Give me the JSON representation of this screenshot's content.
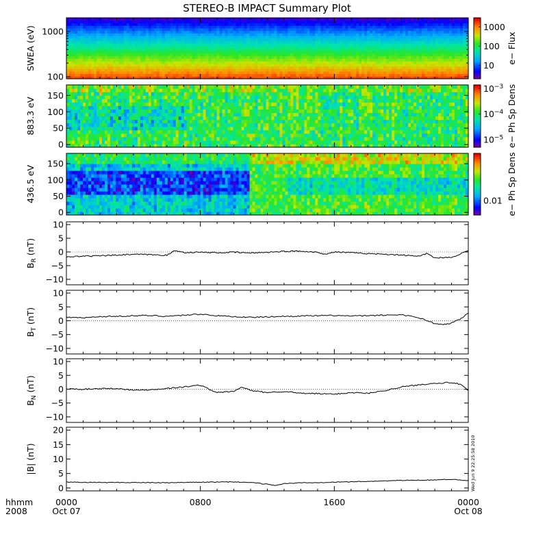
{
  "title": "STEREO-B IMPACT Summary Plot",
  "timestamp": "Wed Jun  9 22:25:58 2010",
  "chart_data": [
    {
      "id": "swea",
      "type": "heatmap",
      "ylabel": "SWEA (eV)",
      "yscale": "log",
      "ylim": [
        90,
        2000
      ],
      "yticks": [
        {
          "v": 100,
          "label": "100"
        },
        {
          "v": 1000,
          "label": "1000"
        }
      ],
      "colorbar": {
        "label": "e− Flux",
        "scale": "log",
        "range": [
          2,
          3000
        ],
        "ticks": [
          {
            "v": 10,
            "label": "10"
          },
          {
            "v": 100,
            "label": "100"
          },
          {
            "v": 1000,
            "label": "1000"
          }
        ]
      }
    },
    {
      "id": "pad_883",
      "type": "heatmap",
      "ylabel": "883.3 eV",
      "ylim": [
        -8,
        182
      ],
      "yticks": [
        {
          "v": 0,
          "label": "0"
        },
        {
          "v": 50,
          "label": "50"
        },
        {
          "v": 100,
          "label": "100"
        },
        {
          "v": 150,
          "label": "150"
        }
      ],
      "colorbar": {
        "label": "e− Ph Sp Dens",
        "scale": "log",
        "range": [
          5e-06,
          0.0014
        ],
        "ticks": [
          {
            "v": 1e-05,
            "base": "10",
            "exp": "−5"
          },
          {
            "v": 0.0001,
            "base": "10",
            "exp": "−4"
          },
          {
            "v": 0.001,
            "base": "10",
            "exp": "−3"
          }
        ]
      }
    },
    {
      "id": "pad_436",
      "type": "heatmap",
      "ylabel": "436.5 eV",
      "ylim": [
        -8,
        182
      ],
      "yticks": [
        {
          "v": 0,
          "label": "0"
        },
        {
          "v": 50,
          "label": "50"
        },
        {
          "v": 100,
          "label": "100"
        },
        {
          "v": 150,
          "label": "150"
        }
      ],
      "colorbar": {
        "label": "e− Ph Sp Dens",
        "scale": "log",
        "range": [
          0.005,
          0.1
        ],
        "ticks": [
          {
            "v": 0.01,
            "label": "0.01"
          }
        ]
      }
    },
    {
      "id": "br",
      "type": "line",
      "ylabel_main": "B",
      "ylabel_sub": "R",
      "ylabel_unit": " (nT)",
      "ylim": [
        -12,
        11
      ],
      "yticks": [
        {
          "v": -10,
          "label": "−10"
        },
        {
          "v": -5,
          "label": "−5"
        },
        {
          "v": 0,
          "label": "0"
        },
        {
          "v": 5,
          "label": "5"
        },
        {
          "v": 10,
          "label": "10"
        }
      ],
      "x": [
        0,
        1,
        2,
        3,
        4,
        5,
        6,
        6.5,
        7,
        8,
        9,
        10,
        11,
        12,
        13,
        14,
        15,
        15.5,
        16,
        17,
        18,
        19,
        20,
        21,
        21.5,
        22,
        23,
        24
      ],
      "values": [
        -1.8,
        -1.6,
        -1.4,
        -1.2,
        -0.9,
        -1.0,
        -1.2,
        0.5,
        -0.2,
        -0.1,
        -0.3,
        -0.1,
        -0.4,
        -0.1,
        0.2,
        0.3,
        -0.1,
        -0.9,
        0.0,
        -0.3,
        -0.6,
        -0.8,
        -1.1,
        -1.6,
        -0.6,
        -2.1,
        -2.0,
        0.5
      ]
    },
    {
      "id": "bt",
      "type": "line",
      "ylabel_main": "B",
      "ylabel_sub": "T",
      "ylabel_unit": " (nT)",
      "ylim": [
        -12,
        11
      ],
      "yticks": [
        {
          "v": -10,
          "label": "−10"
        },
        {
          "v": -5,
          "label": "−5"
        },
        {
          "v": 0,
          "label": "0"
        },
        {
          "v": 5,
          "label": "5"
        },
        {
          "v": 10,
          "label": "10"
        }
      ],
      "x": [
        0,
        1,
        2,
        3,
        4,
        5,
        6,
        7,
        8,
        9,
        10,
        11,
        12,
        13,
        14,
        15,
        16,
        17,
        18,
        19,
        20,
        21,
        22,
        22.5,
        23,
        23.5,
        24
      ],
      "values": [
        1.3,
        1.0,
        1.5,
        1.6,
        1.8,
        1.9,
        1.6,
        2.0,
        2.4,
        1.8,
        1.5,
        1.2,
        1.4,
        1.6,
        1.7,
        1.8,
        1.9,
        1.7,
        1.8,
        2.0,
        2.2,
        1.2,
        -1.0,
        -1.5,
        -0.8,
        0.5,
        2.8
      ]
    },
    {
      "id": "bn",
      "type": "line",
      "ylabel_main": "B",
      "ylabel_sub": "N",
      "ylabel_unit": " (nT)",
      "ylim": [
        -12,
        11
      ],
      "yticks": [
        {
          "v": -10,
          "label": "−10"
        },
        {
          "v": -5,
          "label": "−5"
        },
        {
          "v": 0,
          "label": "0"
        },
        {
          "v": 5,
          "label": "5"
        },
        {
          "v": 10,
          "label": "10"
        }
      ],
      "x": [
        0,
        1,
        2,
        3,
        4,
        5,
        6,
        7,
        8,
        8.5,
        9,
        10,
        10.5,
        11,
        12,
        13,
        14,
        15,
        16,
        17,
        18,
        19,
        20,
        21,
        22,
        23,
        23.5,
        24
      ],
      "values": [
        0.1,
        0.0,
        0.2,
        0.3,
        -0.4,
        -0.2,
        0.3,
        0.8,
        1.5,
        0.0,
        -1.2,
        -0.8,
        0.8,
        -0.5,
        -1.2,
        -0.8,
        -1.5,
        -1.6,
        -1.8,
        -1.2,
        -1.5,
        -0.5,
        0.8,
        1.5,
        2.2,
        2.4,
        1.8,
        -0.5
      ]
    },
    {
      "id": "bmag",
      "type": "line",
      "ylabel_main": "|B|",
      "ylabel_sub": "",
      "ylabel_unit": " (nT)",
      "ylim": [
        -1,
        21
      ],
      "yticks": [
        {
          "v": 0,
          "label": "0"
        },
        {
          "v": 5,
          "label": "5"
        },
        {
          "v": 10,
          "label": "10"
        },
        {
          "v": 15,
          "label": "15"
        },
        {
          "v": 20,
          "label": "20"
        }
      ],
      "x": [
        0,
        2,
        4,
        6,
        8,
        10,
        11,
        12,
        12.5,
        13,
        14,
        16,
        18,
        20,
        22,
        23,
        24
      ],
      "values": [
        2.0,
        1.9,
        1.9,
        1.8,
        2.0,
        2.1,
        1.9,
        1.3,
        0.9,
        1.5,
        1.8,
        2.0,
        2.3,
        2.6,
        2.8,
        3.0,
        2.6
      ]
    }
  ],
  "x_axis": {
    "row1_label": "hhmm",
    "row2_label": "2008",
    "ticks": [
      {
        "v": 0,
        "time": "0000",
        "date": "Oct 07"
      },
      {
        "v": 8,
        "time": "0800",
        "date": ""
      },
      {
        "v": 16,
        "time": "1600",
        "date": ""
      },
      {
        "v": 24,
        "time": "0000",
        "date": "Oct 08"
      }
    ]
  }
}
